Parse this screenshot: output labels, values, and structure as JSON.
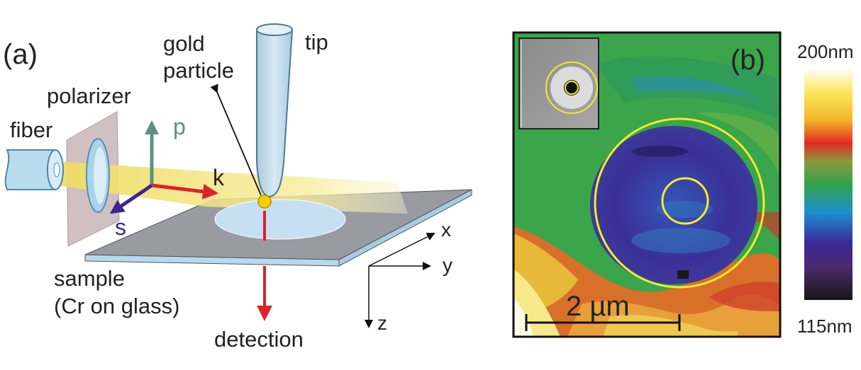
{
  "panel_a": {
    "label": "(a)",
    "labels": {
      "gold": "gold",
      "particle": "particle",
      "tip": "tip",
      "polarizer": "polarizer",
      "fiber": "fiber",
      "p": "p",
      "k": "k",
      "s": "s",
      "x": "x",
      "y": "y",
      "z": "z",
      "sample": "sample",
      "sample_material": "(Cr on glass)",
      "detection": "detection"
    }
  },
  "panel_b": {
    "label": "(b)",
    "scale_bar": "2 µm",
    "colorbar_max": "200nm",
    "colorbar_min": "115nm"
  },
  "colors": {
    "beam": "#f3e58a",
    "arrow_red": "#e0202a",
    "arrow_p": "#5f8f84",
    "arrow_s": "#3a2a8a",
    "tip_fill": "#c9e2ef",
    "plate_top": "#9a9ba2",
    "plate_edge": "#b8d8ee",
    "particle": "#f4d000",
    "circle": "#f2ec2a",
    "map_green": "#3aa54a",
    "map_blue": "#3a2f98"
  }
}
